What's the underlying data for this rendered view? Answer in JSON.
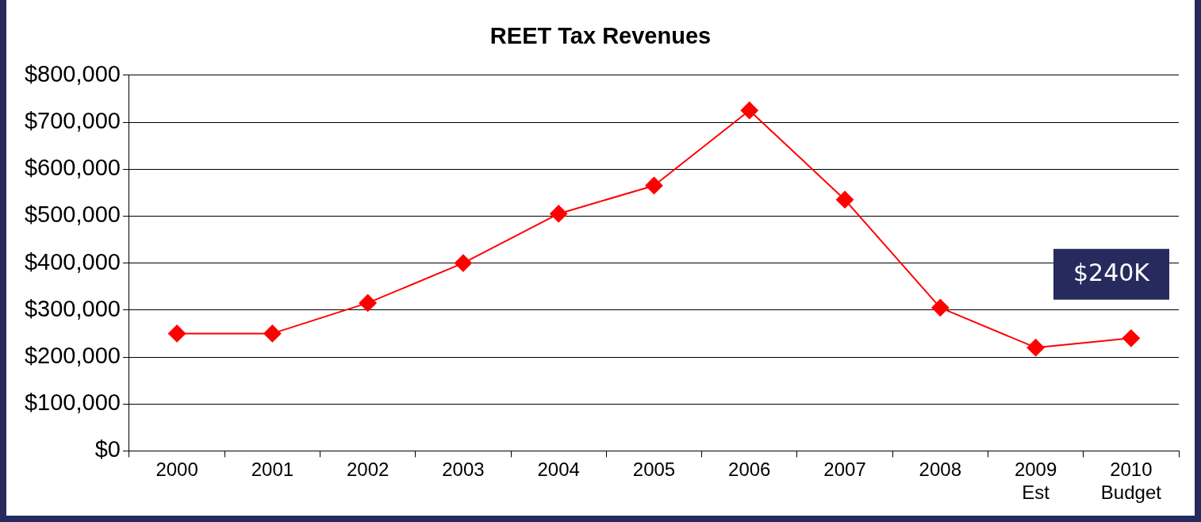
{
  "chart_data": {
    "type": "line",
    "title": "REET Tax Revenues",
    "categories": [
      "2000",
      "2001",
      "2002",
      "2003",
      "2004",
      "2005",
      "2006",
      "2007",
      "2008",
      "2009\nEst",
      "2010\nBudget"
    ],
    "series": [
      {
        "color": "#ff0000",
        "values": [
          250000,
          250000,
          315000,
          400000,
          505000,
          565000,
          725000,
          535000,
          305000,
          220000,
          240000
        ]
      }
    ],
    "ylim": [
      0,
      800000
    ],
    "yticks": [
      {
        "value": 0,
        "label": "$0"
      },
      {
        "value": 100000,
        "label": "$100,000"
      },
      {
        "value": 200000,
        "label": "$200,000"
      },
      {
        "value": 300000,
        "label": "$300,000"
      },
      {
        "value": 400000,
        "label": "$400,000"
      },
      {
        "value": 500000,
        "label": "$500,000"
      },
      {
        "value": 600000,
        "label": "$600,000"
      },
      {
        "value": 700000,
        "label": "$700,000"
      },
      {
        "value": 800000,
        "label": "$800,000"
      }
    ],
    "grid": "y",
    "legend": false,
    "marker": "diamond",
    "line_style": "solid",
    "annotations": [
      "$240K"
    ]
  }
}
